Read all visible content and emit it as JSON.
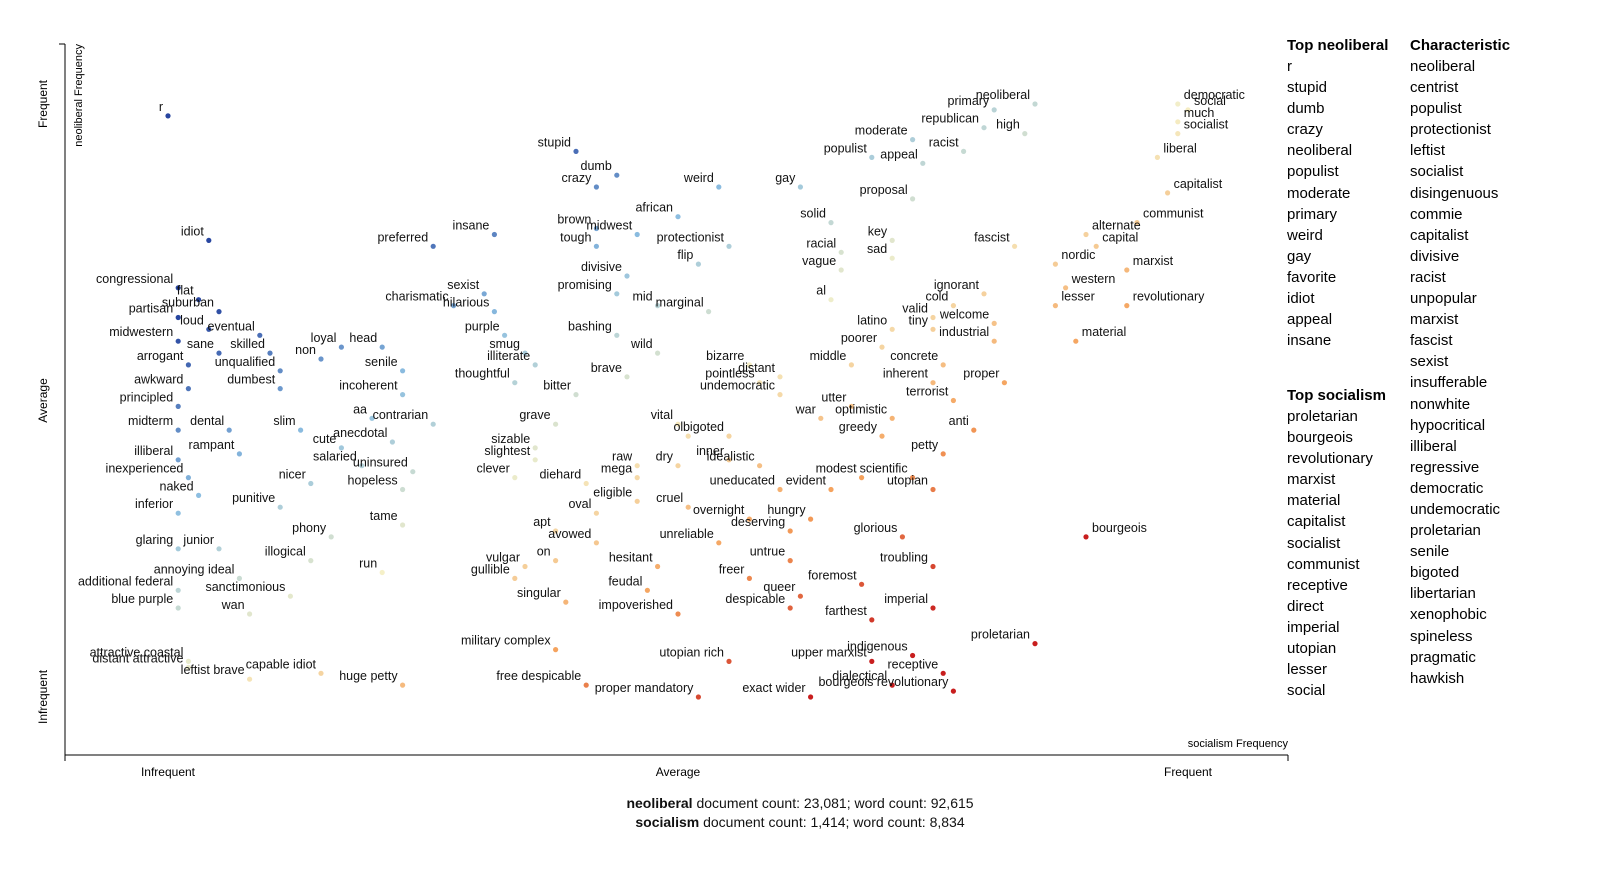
{
  "chart_data": {
    "type": "scatter",
    "xlabel": "socialism Frequency",
    "ylabel": "neoliberal Frequency",
    "xlim": [
      0,
      1
    ],
    "ylim": [
      0,
      1
    ],
    "x_ticks": [
      "Infrequent",
      "Average",
      "Frequent"
    ],
    "y_ticks": [
      "Infrequent",
      "Average",
      "Frequent"
    ],
    "color_scale": "diverging red (socialism-characteristic) to blue (neoliberal-characteristic)",
    "labeled_points": [
      {
        "term": "r",
        "x": 0.0,
        "y": 0.98
      },
      {
        "term": "idiot",
        "x": 0.04,
        "y": 0.77
      },
      {
        "term": "congressional",
        "x": 0.01,
        "y": 0.69
      },
      {
        "term": "flat",
        "x": 0.03,
        "y": 0.67
      },
      {
        "term": "suburban",
        "x": 0.05,
        "y": 0.65
      },
      {
        "term": "partisan",
        "x": 0.01,
        "y": 0.64
      },
      {
        "term": "loud",
        "x": 0.04,
        "y": 0.62
      },
      {
        "term": "eventual",
        "x": 0.09,
        "y": 0.61
      },
      {
        "term": "midwestern",
        "x": 0.01,
        "y": 0.6
      },
      {
        "term": "loyal",
        "x": 0.17,
        "y": 0.59
      },
      {
        "term": "head",
        "x": 0.21,
        "y": 0.59
      },
      {
        "term": "sane",
        "x": 0.05,
        "y": 0.58
      },
      {
        "term": "skilled",
        "x": 0.1,
        "y": 0.58
      },
      {
        "term": "non",
        "x": 0.15,
        "y": 0.57
      },
      {
        "term": "arrogant",
        "x": 0.02,
        "y": 0.56
      },
      {
        "term": "unqualified",
        "x": 0.11,
        "y": 0.55
      },
      {
        "term": "senile",
        "x": 0.23,
        "y": 0.55
      },
      {
        "term": "dumbest",
        "x": 0.11,
        "y": 0.52
      },
      {
        "term": "awkward",
        "x": 0.02,
        "y": 0.52
      },
      {
        "term": "incoherent",
        "x": 0.23,
        "y": 0.51
      },
      {
        "term": "principled",
        "x": 0.01,
        "y": 0.49
      },
      {
        "term": "aa",
        "x": 0.2,
        "y": 0.47
      },
      {
        "term": "contrarian",
        "x": 0.26,
        "y": 0.46
      },
      {
        "term": "midterm",
        "x": 0.01,
        "y": 0.45
      },
      {
        "term": "dental",
        "x": 0.06,
        "y": 0.45
      },
      {
        "term": "slim",
        "x": 0.13,
        "y": 0.45
      },
      {
        "term": "anecdotal",
        "x": 0.22,
        "y": 0.43
      },
      {
        "term": "cute",
        "x": 0.17,
        "y": 0.42
      },
      {
        "term": "rampant",
        "x": 0.07,
        "y": 0.41
      },
      {
        "term": "illiberal",
        "x": 0.01,
        "y": 0.4
      },
      {
        "term": "salaried",
        "x": 0.19,
        "y": 0.39
      },
      {
        "term": "uninsured",
        "x": 0.24,
        "y": 0.38
      },
      {
        "term": "inexperienced",
        "x": 0.02,
        "y": 0.37
      },
      {
        "term": "hopeless",
        "x": 0.23,
        "y": 0.35
      },
      {
        "term": "nicer",
        "x": 0.14,
        "y": 0.36
      },
      {
        "term": "naked",
        "x": 0.03,
        "y": 0.34
      },
      {
        "term": "punitive",
        "x": 0.11,
        "y": 0.32
      },
      {
        "term": "inferior",
        "x": 0.01,
        "y": 0.31
      },
      {
        "term": "tame",
        "x": 0.23,
        "y": 0.29
      },
      {
        "term": "phony",
        "x": 0.16,
        "y": 0.27
      },
      {
        "term": "glaring",
        "x": 0.01,
        "y": 0.25
      },
      {
        "term": "junior",
        "x": 0.05,
        "y": 0.25
      },
      {
        "term": "illogical",
        "x": 0.14,
        "y": 0.23
      },
      {
        "term": "run",
        "x": 0.21,
        "y": 0.21
      },
      {
        "term": "annoying ideal",
        "x": 0.07,
        "y": 0.2
      },
      {
        "term": "additional federal",
        "x": 0.01,
        "y": 0.18
      },
      {
        "term": "sanctimonious",
        "x": 0.12,
        "y": 0.17
      },
      {
        "term": "blue purple",
        "x": 0.01,
        "y": 0.15
      },
      {
        "term": "wan",
        "x": 0.08,
        "y": 0.14
      },
      {
        "term": "attractive coastal",
        "x": 0.02,
        "y": 0.06
      },
      {
        "term": "distant attractive",
        "x": 0.02,
        "y": 0.05
      },
      {
        "term": "leftist brave",
        "x": 0.08,
        "y": 0.03
      },
      {
        "term": "capable idiot",
        "x": 0.15,
        "y": 0.04
      },
      {
        "term": "huge petty",
        "x": 0.23,
        "y": 0.02
      },
      {
        "term": "preferred",
        "x": 0.26,
        "y": 0.76
      },
      {
        "term": "insane",
        "x": 0.32,
        "y": 0.78
      },
      {
        "term": "sexist",
        "x": 0.31,
        "y": 0.68
      },
      {
        "term": "charismatic",
        "x": 0.28,
        "y": 0.66
      },
      {
        "term": "hilarious",
        "x": 0.32,
        "y": 0.65
      },
      {
        "term": "purple",
        "x": 0.33,
        "y": 0.61
      },
      {
        "term": "smug",
        "x": 0.35,
        "y": 0.58
      },
      {
        "term": "illiterate",
        "x": 0.36,
        "y": 0.56
      },
      {
        "term": "thoughtful",
        "x": 0.34,
        "y": 0.53
      },
      {
        "term": "grave",
        "x": 0.38,
        "y": 0.46
      },
      {
        "term": "sizable",
        "x": 0.36,
        "y": 0.42
      },
      {
        "term": "slightest",
        "x": 0.36,
        "y": 0.4
      },
      {
        "term": "clever",
        "x": 0.34,
        "y": 0.37
      },
      {
        "term": "diehard",
        "x": 0.41,
        "y": 0.36
      },
      {
        "term": "oval",
        "x": 0.42,
        "y": 0.31
      },
      {
        "term": "apt",
        "x": 0.38,
        "y": 0.28
      },
      {
        "term": "avowed",
        "x": 0.42,
        "y": 0.26
      },
      {
        "term": "on",
        "x": 0.38,
        "y": 0.23
      },
      {
        "term": "vulgar",
        "x": 0.35,
        "y": 0.22
      },
      {
        "term": "gullible",
        "x": 0.34,
        "y": 0.2
      },
      {
        "term": "singular",
        "x": 0.39,
        "y": 0.16
      },
      {
        "term": "military complex",
        "x": 0.38,
        "y": 0.08
      },
      {
        "term": "free despicable",
        "x": 0.41,
        "y": 0.02
      },
      {
        "term": "stupid",
        "x": 0.4,
        "y": 0.92
      },
      {
        "term": "dumb",
        "x": 0.44,
        "y": 0.88
      },
      {
        "term": "crazy",
        "x": 0.42,
        "y": 0.86
      },
      {
        "term": "weird",
        "x": 0.54,
        "y": 0.86
      },
      {
        "term": "brown",
        "x": 0.42,
        "y": 0.79
      },
      {
        "term": "midwest",
        "x": 0.46,
        "y": 0.78
      },
      {
        "term": "african",
        "x": 0.5,
        "y": 0.81
      },
      {
        "term": "tough",
        "x": 0.42,
        "y": 0.76
      },
      {
        "term": "protectionist",
        "x": 0.55,
        "y": 0.76
      },
      {
        "term": "flip",
        "x": 0.52,
        "y": 0.73
      },
      {
        "term": "divisive",
        "x": 0.45,
        "y": 0.71
      },
      {
        "term": "promising",
        "x": 0.44,
        "y": 0.68
      },
      {
        "term": "mid",
        "x": 0.48,
        "y": 0.66
      },
      {
        "term": "marginal",
        "x": 0.53,
        "y": 0.65
      },
      {
        "term": "bashing",
        "x": 0.44,
        "y": 0.61
      },
      {
        "term": "wild",
        "x": 0.48,
        "y": 0.58
      },
      {
        "term": "brave",
        "x": 0.45,
        "y": 0.54
      },
      {
        "term": "bitter",
        "x": 0.4,
        "y": 0.51
      },
      {
        "term": "vital",
        "x": 0.5,
        "y": 0.46
      },
      {
        "term": "ol",
        "x": 0.51,
        "y": 0.44
      },
      {
        "term": "bigoted",
        "x": 0.55,
        "y": 0.44
      },
      {
        "term": "raw",
        "x": 0.46,
        "y": 0.39
      },
      {
        "term": "dry",
        "x": 0.5,
        "y": 0.39
      },
      {
        "term": "mega",
        "x": 0.46,
        "y": 0.37
      },
      {
        "term": "eligible",
        "x": 0.46,
        "y": 0.33
      },
      {
        "term": "cruel",
        "x": 0.51,
        "y": 0.32
      },
      {
        "term": "unreliable",
        "x": 0.54,
        "y": 0.26
      },
      {
        "term": "hesitant",
        "x": 0.48,
        "y": 0.22
      },
      {
        "term": "feudal",
        "x": 0.47,
        "y": 0.18
      },
      {
        "term": "impoverished",
        "x": 0.5,
        "y": 0.14
      },
      {
        "term": "utopian rich",
        "x": 0.55,
        "y": 0.06
      },
      {
        "term": "proper mandatory",
        "x": 0.52,
        "y": 0.0
      },
      {
        "term": "gay",
        "x": 0.62,
        "y": 0.86
      },
      {
        "term": "solid",
        "x": 0.65,
        "y": 0.8
      },
      {
        "term": "key",
        "x": 0.71,
        "y": 0.77
      },
      {
        "term": "racial",
        "x": 0.66,
        "y": 0.75
      },
      {
        "term": "sad",
        "x": 0.71,
        "y": 0.74
      },
      {
        "term": "vague",
        "x": 0.66,
        "y": 0.72
      },
      {
        "term": "al",
        "x": 0.65,
        "y": 0.67
      },
      {
        "term": "bizarre",
        "x": 0.57,
        "y": 0.56
      },
      {
        "term": "distant",
        "x": 0.6,
        "y": 0.54
      },
      {
        "term": "pointless",
        "x": 0.58,
        "y": 0.53
      },
      {
        "term": "undemocratic",
        "x": 0.6,
        "y": 0.51
      },
      {
        "term": "war",
        "x": 0.64,
        "y": 0.47
      },
      {
        "term": "inner",
        "x": 0.55,
        "y": 0.4
      },
      {
        "term": "idealistic",
        "x": 0.58,
        "y": 0.39
      },
      {
        "term": "uneducated",
        "x": 0.6,
        "y": 0.35
      },
      {
        "term": "overnight",
        "x": 0.57,
        "y": 0.3
      },
      {
        "term": "hungry",
        "x": 0.63,
        "y": 0.3
      },
      {
        "term": "deserving",
        "x": 0.61,
        "y": 0.28
      },
      {
        "term": "untrue",
        "x": 0.61,
        "y": 0.23
      },
      {
        "term": "freer",
        "x": 0.57,
        "y": 0.2
      },
      {
        "term": "queer",
        "x": 0.62,
        "y": 0.17
      },
      {
        "term": "despicable",
        "x": 0.61,
        "y": 0.15
      },
      {
        "term": "exact wider",
        "x": 0.63,
        "y": 0.0
      },
      {
        "term": "upper marxist",
        "x": 0.69,
        "y": 0.06
      },
      {
        "term": "primary",
        "x": 0.81,
        "y": 0.99
      },
      {
        "term": "neoliberal",
        "x": 0.85,
        "y": 1.0
      },
      {
        "term": "democratic",
        "x": 0.99,
        "y": 1.0
      },
      {
        "term": "republican",
        "x": 0.8,
        "y": 0.96
      },
      {
        "term": "high",
        "x": 0.84,
        "y": 0.95
      },
      {
        "term": "social",
        "x": 1.0,
        "y": 0.99
      },
      {
        "term": "much",
        "x": 0.99,
        "y": 0.97
      },
      {
        "term": "socialist",
        "x": 0.99,
        "y": 0.95
      },
      {
        "term": "moderate",
        "x": 0.73,
        "y": 0.94
      },
      {
        "term": "racist",
        "x": 0.78,
        "y": 0.92
      },
      {
        "term": "populist",
        "x": 0.69,
        "y": 0.91
      },
      {
        "term": "appeal",
        "x": 0.74,
        "y": 0.9
      },
      {
        "term": "liberal",
        "x": 0.97,
        "y": 0.91
      },
      {
        "term": "proposal",
        "x": 0.73,
        "y": 0.84
      },
      {
        "term": "capitalist",
        "x": 0.98,
        "y": 0.85
      },
      {
        "term": "communist",
        "x": 0.95,
        "y": 0.8
      },
      {
        "term": "alternate",
        "x": 0.9,
        "y": 0.78
      },
      {
        "term": "capital",
        "x": 0.91,
        "y": 0.76
      },
      {
        "term": "fascist",
        "x": 0.83,
        "y": 0.76
      },
      {
        "term": "nordic",
        "x": 0.87,
        "y": 0.73
      },
      {
        "term": "marxist",
        "x": 0.94,
        "y": 0.72
      },
      {
        "term": "ignorant",
        "x": 0.8,
        "y": 0.68
      },
      {
        "term": "western",
        "x": 0.88,
        "y": 0.69
      },
      {
        "term": "cold",
        "x": 0.77,
        "y": 0.66
      },
      {
        "term": "lesser",
        "x": 0.87,
        "y": 0.66
      },
      {
        "term": "revolutionary",
        "x": 0.94,
        "y": 0.66
      },
      {
        "term": "valid",
        "x": 0.75,
        "y": 0.64
      },
      {
        "term": "welcome",
        "x": 0.81,
        "y": 0.63
      },
      {
        "term": "tiny",
        "x": 0.75,
        "y": 0.62
      },
      {
        "term": "latino",
        "x": 0.71,
        "y": 0.62
      },
      {
        "term": "industrial",
        "x": 0.81,
        "y": 0.6
      },
      {
        "term": "material",
        "x": 0.89,
        "y": 0.6
      },
      {
        "term": "poorer",
        "x": 0.7,
        "y": 0.59
      },
      {
        "term": "middle",
        "x": 0.67,
        "y": 0.56
      },
      {
        "term": "concrete",
        "x": 0.76,
        "y": 0.56
      },
      {
        "term": "proper",
        "x": 0.82,
        "y": 0.53
      },
      {
        "term": "inherent",
        "x": 0.75,
        "y": 0.53
      },
      {
        "term": "utter",
        "x": 0.67,
        "y": 0.49
      },
      {
        "term": "terrorist",
        "x": 0.77,
        "y": 0.5
      },
      {
        "term": "optimistic",
        "x": 0.71,
        "y": 0.47
      },
      {
        "term": "anti",
        "x": 0.79,
        "y": 0.45
      },
      {
        "term": "greedy",
        "x": 0.7,
        "y": 0.44
      },
      {
        "term": "petty",
        "x": 0.76,
        "y": 0.41
      },
      {
        "term": "modest",
        "x": 0.68,
        "y": 0.37
      },
      {
        "term": "scientific",
        "x": 0.73,
        "y": 0.37
      },
      {
        "term": "evident",
        "x": 0.65,
        "y": 0.35
      },
      {
        "term": "utopian",
        "x": 0.75,
        "y": 0.35
      },
      {
        "term": "glorious",
        "x": 0.72,
        "y": 0.27
      },
      {
        "term": "bourgeois",
        "x": 0.9,
        "y": 0.27
      },
      {
        "term": "troubling",
        "x": 0.75,
        "y": 0.22
      },
      {
        "term": "foremost",
        "x": 0.68,
        "y": 0.19
      },
      {
        "term": "imperial",
        "x": 0.75,
        "y": 0.15
      },
      {
        "term": "farthest",
        "x": 0.69,
        "y": 0.13
      },
      {
        "term": "proletarian",
        "x": 0.85,
        "y": 0.09
      },
      {
        "term": "indigenous",
        "x": 0.73,
        "y": 0.07
      },
      {
        "term": "receptive",
        "x": 0.76,
        "y": 0.04
      },
      {
        "term": "dialectical",
        "x": 0.71,
        "y": 0.02
      },
      {
        "term": "bourgeois revolutionary",
        "x": 0.77,
        "y": 0.01
      }
    ],
    "legend": "none"
  },
  "panels": {
    "top_neoliberal": {
      "title": "Top neoliberal",
      "items": [
        "r",
        "stupid",
        "dumb",
        "crazy",
        "neoliberal",
        "populist",
        "moderate",
        "primary",
        "weird",
        "gay",
        "favorite",
        "idiot",
        "appeal",
        "insane"
      ]
    },
    "top_socialism": {
      "title": "Top socialism",
      "items": [
        "proletarian",
        "bourgeois",
        "revolutionary",
        "marxist",
        "material",
        "capitalist",
        "socialist",
        "communist",
        "receptive",
        "direct",
        "imperial",
        "utopian",
        "lesser",
        "social"
      ]
    },
    "characteristic": {
      "title": "Characteristic",
      "items": [
        "neoliberal",
        "centrist",
        "populist",
        "protectionist",
        "leftist",
        "socialist",
        "disingenuous",
        "commie",
        "capitalist",
        "divisive",
        "racist",
        "unpopular",
        "marxist",
        "fascist",
        "sexist",
        "insufferable",
        "nonwhite",
        "hypocritical",
        "illiberal",
        "regressive",
        "democratic",
        "undemocratic",
        "proletarian",
        "senile",
        "bigoted",
        "libertarian",
        "xenophobic",
        "spineless",
        "pragmatic",
        "hawkish"
      ]
    }
  },
  "footer": {
    "line1_cat": "neoliberal",
    "line1_rest": " document count: 23,081; word count: 92,615",
    "line2_cat": "socialism",
    "line2_rest": " document count: 1,414; word count: 8,834"
  }
}
